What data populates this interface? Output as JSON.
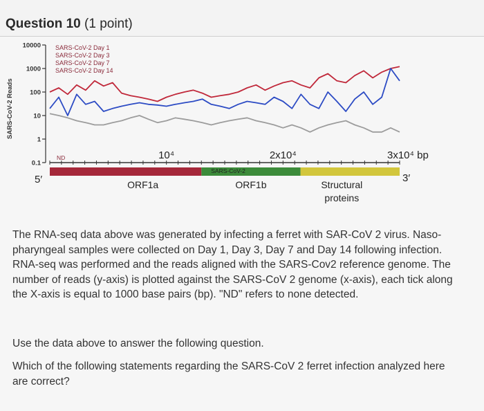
{
  "question": {
    "title": "Question 10",
    "points": "(1 point)"
  },
  "chart_data": {
    "type": "line",
    "ylabel": "SARS-CoV-2 Reads",
    "y_ticks": [
      "10000",
      "1000",
      "100",
      "10",
      "1",
      "0.1"
    ],
    "y_scale": "log",
    "ylim": [
      0.1,
      10000
    ],
    "x_ticks": [
      "10⁴",
      "2x10⁴",
      "3x10⁴ bp"
    ],
    "xlim": [
      0,
      30000
    ],
    "nd_label": "ND",
    "legend": [
      "SARS-CoV-2  Day 1",
      "SARS-CoV-2  Day 3",
      "SARS-CoV-2  Day 7",
      "SARS-CoV-2  Day 14"
    ],
    "legend_position": "top-left",
    "colors": {
      "red": "#c0283a",
      "blue": "#2c4bc4",
      "gray": "#9c9c9c"
    },
    "series": [
      {
        "name": "SARS-CoV-2  Day 3",
        "color": "#c0283a",
        "values": [
          100,
          150,
          80,
          200,
          120,
          300,
          180,
          250,
          90,
          70,
          60,
          50,
          40,
          60,
          80,
          100,
          120,
          90,
          60,
          70,
          80,
          100,
          150,
          200,
          120,
          180,
          250,
          300,
          200,
          150,
          400,
          600,
          300,
          250,
          500,
          800,
          400,
          700,
          1000,
          1200
        ]
      },
      {
        "name": "SARS-CoV-2  Day 7",
        "color": "#2c4bc4",
        "values": [
          20,
          60,
          10,
          80,
          30,
          40,
          15,
          20,
          25,
          30,
          35,
          30,
          28,
          25,
          30,
          35,
          40,
          50,
          30,
          25,
          20,
          30,
          40,
          35,
          30,
          60,
          40,
          20,
          80,
          30,
          20,
          100,
          40,
          15,
          50,
          100,
          30,
          60,
          1000,
          300
        ]
      },
      {
        "name": "SARS-CoV-2  Day 14",
        "color": "#9c9c9c",
        "values": [
          12,
          10,
          8,
          6,
          5,
          4,
          4,
          5,
          6,
          8,
          10,
          7,
          5,
          6,
          8,
          7,
          6,
          5,
          4,
          5,
          6,
          7,
          8,
          6,
          5,
          4,
          3,
          4,
          3,
          2,
          3,
          4,
          5,
          6,
          4,
          3,
          2,
          2,
          3,
          2
        ]
      }
    ],
    "genome_map": {
      "five_prime": "5′",
      "three_prime": "3′",
      "bar_label": "SARS-CoV-2",
      "regions": [
        {
          "label": "ORF1a",
          "start": 0,
          "end": 13000,
          "color": "#a5283a"
        },
        {
          "label": "ORF1b",
          "start": 13000,
          "end": 21500,
          "color": "#3c8b3a"
        },
        {
          "label": "Structural proteins",
          "start": 21500,
          "end": 30000,
          "color": "#d2c63c"
        }
      ]
    }
  },
  "text": {
    "paragraph1": "The RNA-seq data above was generated by infecting a ferret with SAR-CoV 2 virus. Naso-pharyngeal samples were collected on Day 1, Day 3, Day 7 and Day 14 following infection. RNA-seq was performed and the reads aligned with the SARS-Cov2 reference genome. The number of reads (y-axis) is plotted against the SARS-CoV 2 genome (x-axis), each tick along the X-axis is equal to 1000 base pairs (bp). \"ND\" refers to none detected.",
    "paragraph2": "Use the data above to answer the following question.",
    "paragraph3": "Which of the following statements regarding the SARS-CoV 2 ferret infection analyzed here are correct?"
  }
}
